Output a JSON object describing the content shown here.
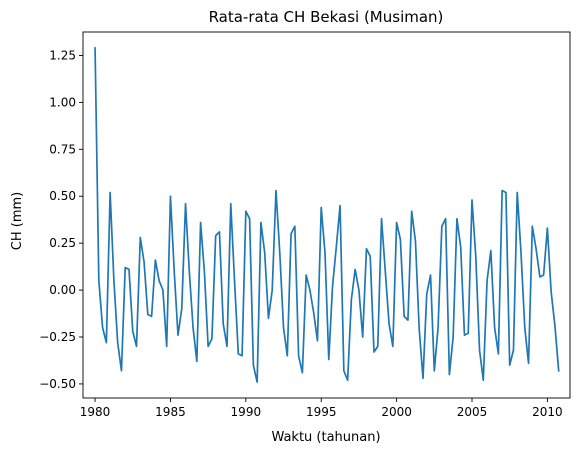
{
  "chart_data": {
    "type": "line",
    "title": "Rata-rata CH Bekasi (Musiman)",
    "xlabel": "Waktu (tahunan)",
    "ylabel": "CH (mm)",
    "xlim": [
      1979.2,
      2011.5
    ],
    "ylim": [
      -0.575,
      1.375
    ],
    "xticks": [
      1980,
      1985,
      1990,
      1995,
      2000,
      2005,
      2010
    ],
    "xtick_labels": [
      "1980",
      "1985",
      "1990",
      "1995",
      "2000",
      "2005",
      "2010"
    ],
    "yticks": [
      -0.5,
      -0.25,
      0.0,
      0.25,
      0.5,
      0.75,
      1.0,
      1.25
    ],
    "ytick_labels": [
      "−0.50",
      "−0.25",
      "0.00",
      "0.25",
      "0.50",
      "0.75",
      "1.00",
      "1.25"
    ],
    "grid": false,
    "series": [
      {
        "color": "#1f77b4",
        "x": [
          1980.0,
          1980.25,
          1980.5,
          1980.75,
          1981.0,
          1981.25,
          1981.5,
          1981.75,
          1982.0,
          1982.25,
          1982.5,
          1982.75,
          1983.0,
          1983.25,
          1983.5,
          1983.75,
          1984.0,
          1984.25,
          1984.5,
          1984.75,
          1985.0,
          1985.25,
          1985.5,
          1985.75,
          1986.0,
          1986.25,
          1986.5,
          1986.75,
          1987.0,
          1987.25,
          1987.5,
          1987.75,
          1988.0,
          1988.25,
          1988.5,
          1988.75,
          1989.0,
          1989.25,
          1989.5,
          1989.75,
          1990.0,
          1990.25,
          1990.5,
          1990.75,
          1991.0,
          1991.25,
          1991.5,
          1991.75,
          1992.0,
          1992.25,
          1992.5,
          1992.75,
          1993.0,
          1993.25,
          1993.5,
          1993.75,
          1994.0,
          1994.25,
          1994.5,
          1994.75,
          1995.0,
          1995.25,
          1995.5,
          1995.75,
          1996.0,
          1996.25,
          1996.5,
          1996.75,
          1997.0,
          1997.25,
          1997.5,
          1997.75,
          1998.0,
          1998.25,
          1998.5,
          1998.75,
          1999.0,
          1999.25,
          1999.5,
          1999.75,
          2000.0,
          2000.25,
          2000.5,
          2000.75,
          2001.0,
          2001.25,
          2001.5,
          2001.75,
          2002.0,
          2002.25,
          2002.5,
          2002.75,
          2003.0,
          2003.25,
          2003.5,
          2003.75,
          2004.0,
          2004.25,
          2004.5,
          2004.75,
          2005.0,
          2005.25,
          2005.5,
          2005.75,
          2006.0,
          2006.25,
          2006.5,
          2006.75,
          2007.0,
          2007.25,
          2007.5,
          2007.75,
          2008.0,
          2008.25,
          2008.5,
          2008.75,
          2009.0,
          2009.25,
          2009.5,
          2009.75,
          2010.0,
          2010.25,
          2010.5,
          2010.75
        ],
        "values": [
          1.29,
          0.05,
          -0.2,
          -0.28,
          0.52,
          0.05,
          -0.28,
          -0.43,
          0.12,
          0.11,
          -0.22,
          -0.3,
          0.28,
          0.15,
          -0.13,
          -0.14,
          0.16,
          0.05,
          0.0,
          -0.3,
          0.5,
          0.1,
          -0.24,
          -0.1,
          0.46,
          0.1,
          -0.2,
          -0.38,
          0.36,
          0.1,
          -0.3,
          -0.26,
          0.29,
          0.31,
          -0.18,
          -0.3,
          0.46,
          0.05,
          -0.34,
          -0.35,
          0.42,
          0.38,
          -0.4,
          -0.49,
          0.36,
          0.2,
          -0.15,
          0.0,
          0.53,
          0.2,
          -0.2,
          -0.35,
          0.3,
          0.34,
          -0.35,
          -0.44,
          0.08,
          0.0,
          -0.12,
          -0.27,
          0.44,
          0.2,
          -0.37,
          0.02,
          0.23,
          0.45,
          -0.43,
          -0.48,
          -0.05,
          0.11,
          0.0,
          -0.25,
          0.22,
          0.18,
          -0.33,
          -0.3,
          0.38,
          0.1,
          -0.18,
          -0.3,
          0.36,
          0.27,
          -0.14,
          -0.16,
          0.42,
          0.26,
          -0.21,
          -0.47,
          -0.02,
          0.08,
          -0.43,
          -0.2,
          0.34,
          0.38,
          -0.45,
          -0.25,
          0.38,
          0.23,
          -0.24,
          -0.23,
          0.48,
          0.18,
          -0.32,
          -0.48,
          0.05,
          0.21,
          -0.2,
          -0.34,
          0.53,
          0.52,
          -0.4,
          -0.32,
          0.52,
          0.2,
          -0.2,
          -0.39,
          0.34,
          0.22,
          0.07,
          0.08,
          0.33,
          -0.01,
          -0.19,
          -0.43
        ]
      }
    ]
  }
}
